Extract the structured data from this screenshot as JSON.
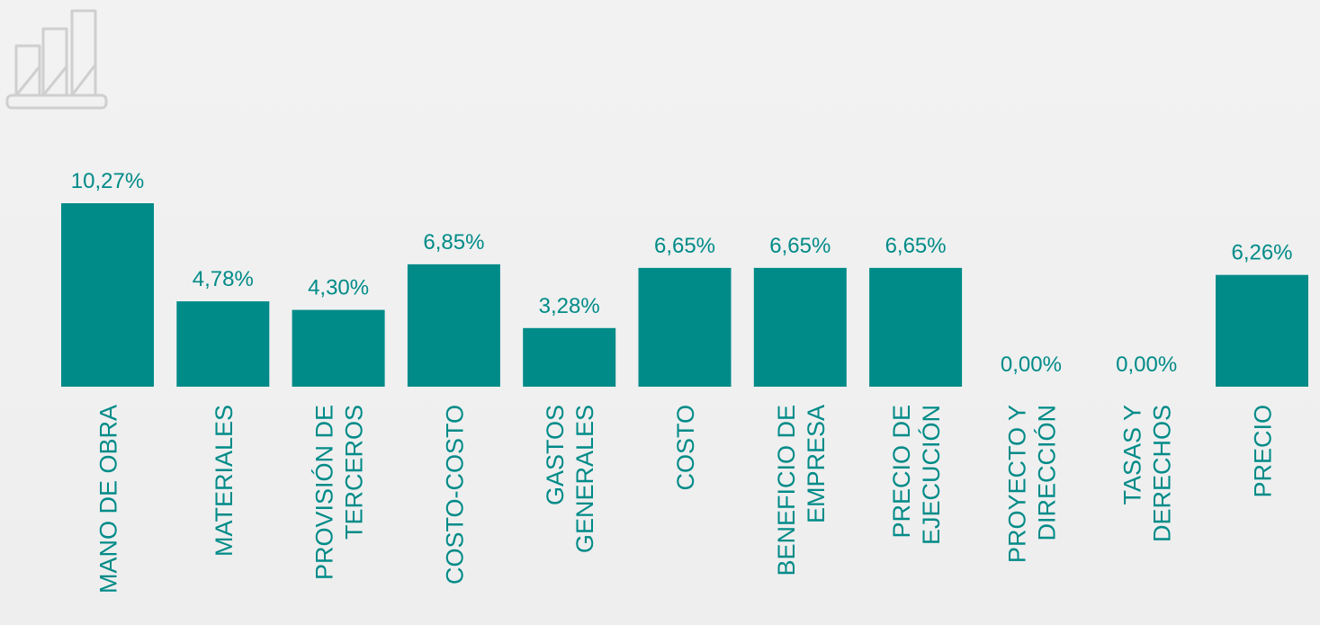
{
  "chart_data": {
    "type": "bar",
    "categories": [
      [
        "MANO DE OBRA"
      ],
      [
        "MATERIALES"
      ],
      [
        "PROVISIÓN DE",
        "TERCEROS"
      ],
      [
        "COSTO-COSTO"
      ],
      [
        "GASTOS",
        "GENERALES"
      ],
      [
        "COSTO"
      ],
      [
        "BENEFICIO DE",
        "EMPRESA"
      ],
      [
        "PRECIO DE",
        "EJECUCIÓN"
      ],
      [
        "PROYECTO Y",
        "DIRECCIÓN"
      ],
      [
        "TASAS Y",
        "DERECHOS"
      ],
      [
        "PRECIO"
      ]
    ],
    "values": [
      10.27,
      4.78,
      4.3,
      6.85,
      3.28,
      6.65,
      6.65,
      6.65,
      0.0,
      0.0,
      6.26
    ],
    "data_labels": [
      "10,27%",
      "4,78%",
      "4,30%",
      "6,85%",
      "3,28%",
      "6,65%",
      "6,65%",
      "6,65%",
      "0,00%",
      "0,00%",
      "6,26%"
    ],
    "title": "",
    "xlabel": "",
    "ylabel": "",
    "ylim": [
      0,
      10.27
    ],
    "grid": false,
    "legend": "none",
    "bar_color": "#008b88",
    "label_color": "#008b88"
  },
  "icon": {
    "name": "bar-chart-icon",
    "color": "#cfcfcf"
  }
}
